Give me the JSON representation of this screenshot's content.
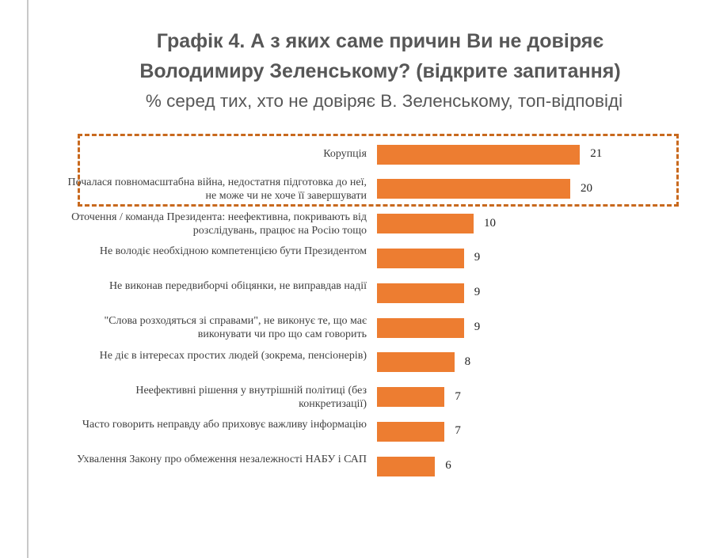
{
  "chart_data": {
    "type": "bar",
    "orientation": "horizontal",
    "title": "Графік 4. А з яких саме причин Ви не довіряє Володимиру Зеленському? (відкрите запитання)",
    "title_lines": [
      "Графік 4. А з яких саме причин Ви не довіряє",
      "Володимиру Зеленському? (відкрите запитання)"
    ],
    "subtitle": "% серед тих, хто не довіряє В. Зеленському, топ-відповіді",
    "xlabel": "",
    "ylabel": "",
    "xlim": [
      0,
      25
    ],
    "grid": false,
    "highlighted_categories": [
      0,
      1
    ],
    "bar_color": "#ed7d31",
    "highlight_color": "#c8691e",
    "categories": [
      "Корупція",
      "Почалася повномасштабна війна, недостатня підготовка до неї, не може чи не хоче її завершувати",
      "Оточення / команда Президента: неефективна, покривають від розслідувань, працює на Росію тощо",
      "Не володіє необхідною компетенцією бути Президентом",
      "Не виконав передвиборчі обіцянки, не виправдав надії",
      "\"Слова розходяться зі справами\", не виконує те, що має виконувати чи про що сам говорить",
      "Не діє в інтересах простих людей (зокрема, пенсіонерів)",
      "Неефективні рішення у внутрішній політиці (без конкретизації)",
      "Часто говорить неправду або приховує важливу інформацію",
      "Ухвалення Закону про обмеження незалежності НАБУ і САП"
    ],
    "values": [
      21,
      20,
      10,
      9,
      9,
      9,
      8,
      7,
      7,
      6
    ]
  }
}
